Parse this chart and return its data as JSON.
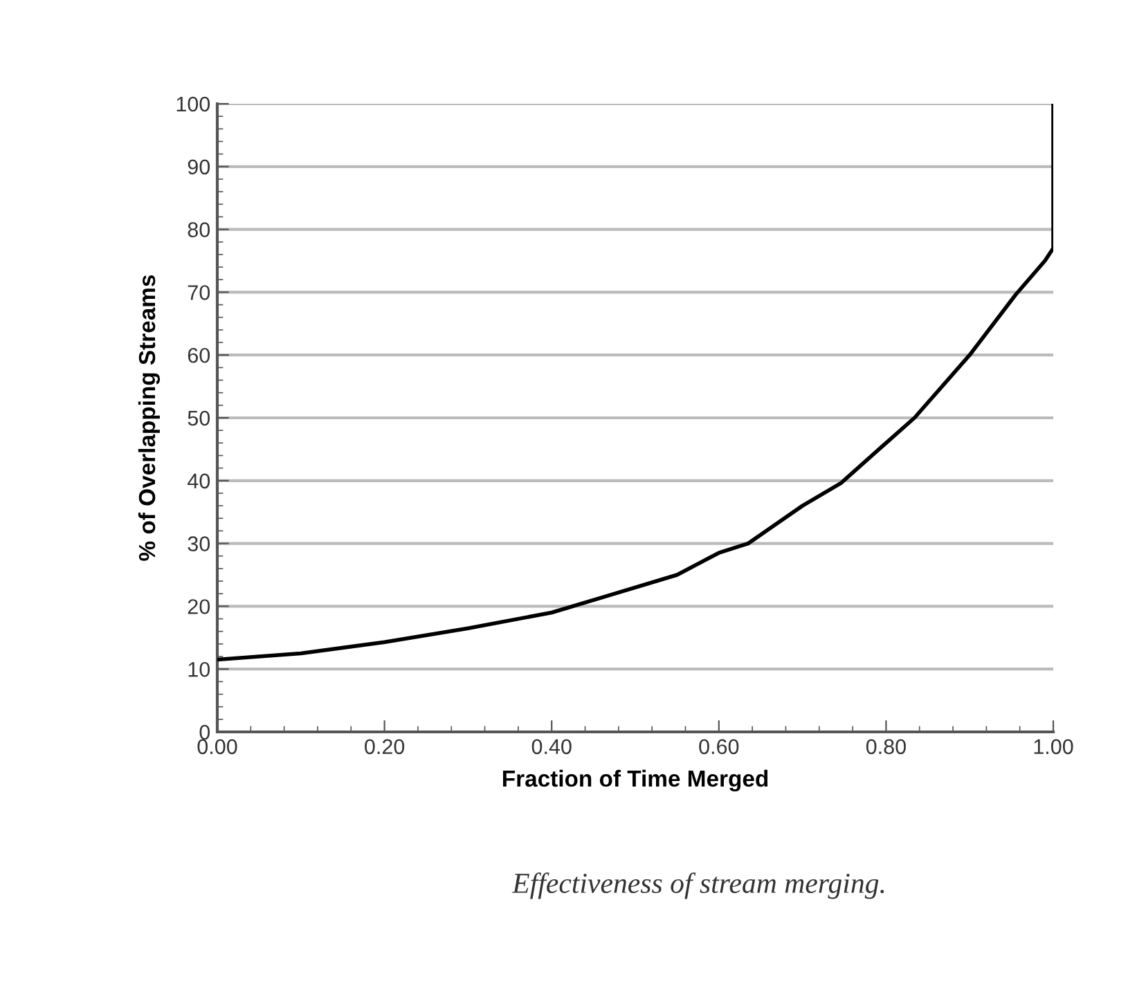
{
  "chart_data": {
    "type": "line",
    "xlabel": "Fraction of Time Merged",
    "ylabel": "% of Overlapping Streams",
    "annotations": [
      "Effectiveness of stream merging."
    ],
    "series": [
      {
        "color": "#000000",
        "x": [
          0,
          0.1,
          0.2,
          0.3,
          0.4,
          0.47,
          0.55,
          0.6,
          0.635,
          0.7,
          0.746,
          0.8,
          0.834,
          0.9,
          0.955,
          0.99,
          1.0,
          1.0
        ],
        "values": [
          11.5,
          12.5,
          14.3,
          16.5,
          19,
          21.8,
          25,
          28.5,
          30,
          36,
          39.6,
          46,
          50,
          60,
          69.6,
          75,
          77,
          100
        ]
      }
    ],
    "xlim": [
      0,
      1
    ],
    "ylim": [
      0,
      100
    ],
    "xticks": [
      {
        "value": 0,
        "label": "0.00"
      },
      {
        "value": 0.2,
        "label": "0.20"
      },
      {
        "value": 0.4,
        "label": "0.40"
      },
      {
        "value": 0.6,
        "label": "0.60"
      },
      {
        "value": 0.8,
        "label": "0.80"
      },
      {
        "value": 1,
        "label": "1.00"
      }
    ],
    "yticks": [
      0,
      10,
      20,
      30,
      40,
      50,
      60,
      70,
      80,
      90,
      100
    ],
    "grid": "y",
    "marker": "none",
    "line_style": "solid"
  }
}
